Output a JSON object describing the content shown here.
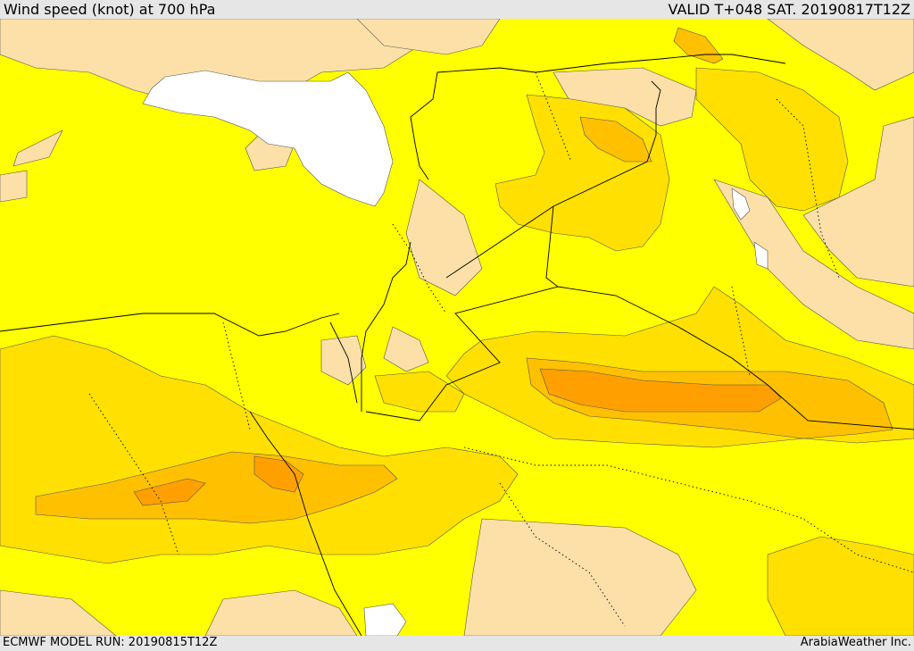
{
  "header": {
    "title": "Wind speed (knot) at 700 hPa",
    "valid": "VALID T+048 SAT. 20190817T12Z"
  },
  "footer": {
    "model_run": "ECMWF MODEL RUN: 20190815T12Z",
    "credit": "ArabiaWeather Inc."
  },
  "colors": {
    "calm": "#ffffff",
    "light": "#fde0a8",
    "base": "#ffff00",
    "moderate": "#ffe000",
    "strong": "#ffc000",
    "stronger": "#ffa000",
    "border": "#000000"
  }
}
